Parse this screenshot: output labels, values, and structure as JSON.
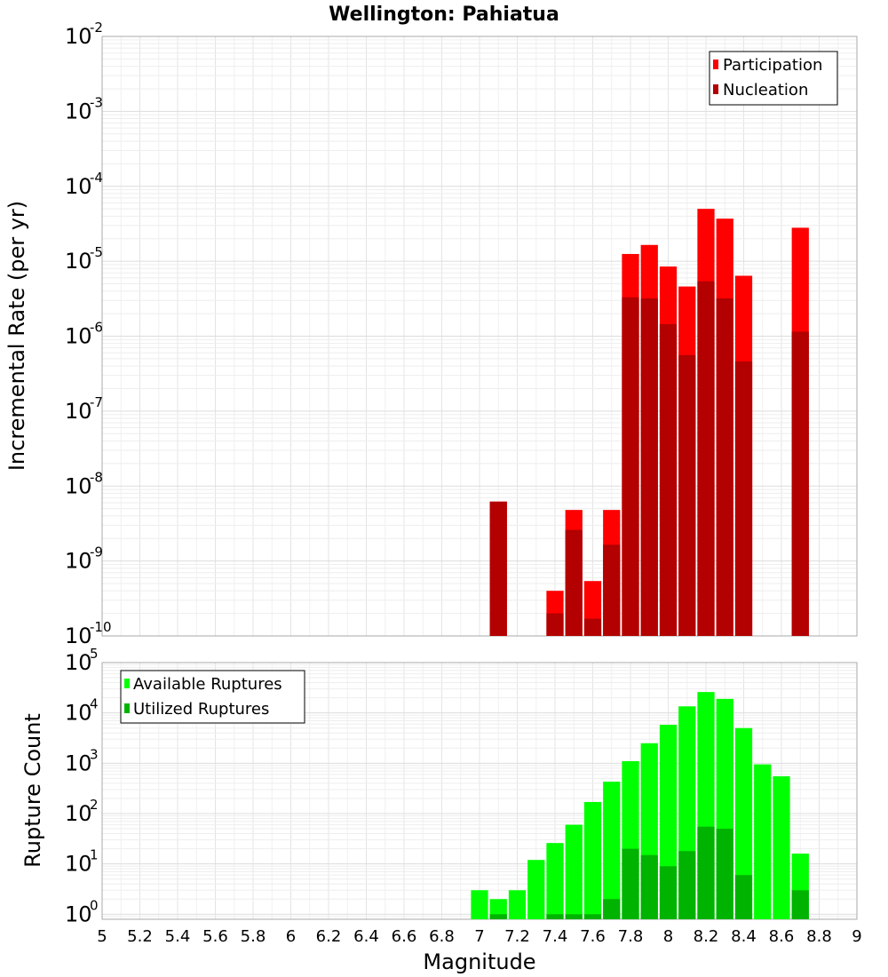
{
  "figure": {
    "title": "Wellington: Pahiatua",
    "xlabel": "Magnitude"
  },
  "chart_data": [
    {
      "type": "bar",
      "title": "Wellington: Pahiatua",
      "ylabel": "Incremental Rate (per yr)",
      "xlabel": "Magnitude",
      "yscale": "log",
      "ylim_exponents": [
        -10,
        -2
      ],
      "ytick_base": "10",
      "ytick_exponents": [
        "-2",
        "-3",
        "-4",
        "-5",
        "-6",
        "-7",
        "-8",
        "-9",
        "-10"
      ],
      "xlim": [
        5,
        9
      ],
      "grid": true,
      "legend_position": "top-right",
      "colors": {
        "participation": "#ff0000",
        "nucleation": "#b30000"
      },
      "x": [
        7.1,
        7.2,
        7.3,
        7.4,
        7.5,
        7.6,
        7.7,
        7.8,
        7.9,
        8.0,
        8.1,
        8.2,
        8.3,
        8.4,
        8.5,
        8.6,
        8.7
      ],
      "series": [
        {
          "name": "Participation",
          "values": [
            6.2e-09,
            null,
            null,
            4e-10,
            4.8e-09,
            5.4e-10,
            4.8e-09,
            1.25e-05,
            1.65e-05,
            8.5e-06,
            4.6e-06,
            5e-05,
            3.7e-05,
            6.4e-06,
            null,
            null,
            2.8e-05
          ]
        },
        {
          "name": "Nucleation",
          "values": [
            6.2e-09,
            null,
            null,
            2e-10,
            2.6e-09,
            1.7e-10,
            1.65e-09,
            3.3e-06,
            3.2e-06,
            1.45e-06,
            5.6e-07,
            5.4e-06,
            3.2e-06,
            4.6e-07,
            null,
            null,
            1.15e-06
          ]
        }
      ]
    },
    {
      "type": "bar",
      "ylabel": "Rupture Count",
      "xlabel": "Magnitude",
      "yscale": "log",
      "ylim_exponents": [
        -0.1,
        5
      ],
      "ytick_base": "10",
      "ytick_exponents": [
        "5",
        "4",
        "3",
        "2",
        "1",
        "0"
      ],
      "xlim": [
        5,
        9
      ],
      "xtick_labels": [
        "5",
        "5.2",
        "5.4",
        "5.6",
        "5.8",
        "6",
        "6.2",
        "6.4",
        "6.6",
        "6.8",
        "7",
        "7.2",
        "7.4",
        "7.6",
        "7.8",
        "8",
        "8.2",
        "8.4",
        "8.6",
        "8.8",
        "9"
      ],
      "grid": true,
      "legend_position": "top-left",
      "colors": {
        "available": "#00ff00",
        "utilized": "#00b300"
      },
      "x": [
        7.0,
        7.1,
        7.2,
        7.3,
        7.4,
        7.5,
        7.6,
        7.7,
        7.8,
        7.9,
        8.0,
        8.1,
        8.2,
        8.3,
        8.4,
        8.5,
        8.6,
        8.7
      ],
      "series": [
        {
          "name": "Available Ruptures",
          "values": [
            3,
            2,
            3,
            12,
            26,
            60,
            170,
            430,
            1100,
            2500,
            5800,
            13500,
            26000,
            19000,
            5000,
            950,
            550,
            16
          ]
        },
        {
          "name": "Utilized Ruptures",
          "values": [
            null,
            1,
            null,
            null,
            1,
            1,
            1,
            2,
            20,
            15,
            9,
            18,
            55,
            50,
            6,
            null,
            null,
            3
          ]
        }
      ]
    }
  ]
}
